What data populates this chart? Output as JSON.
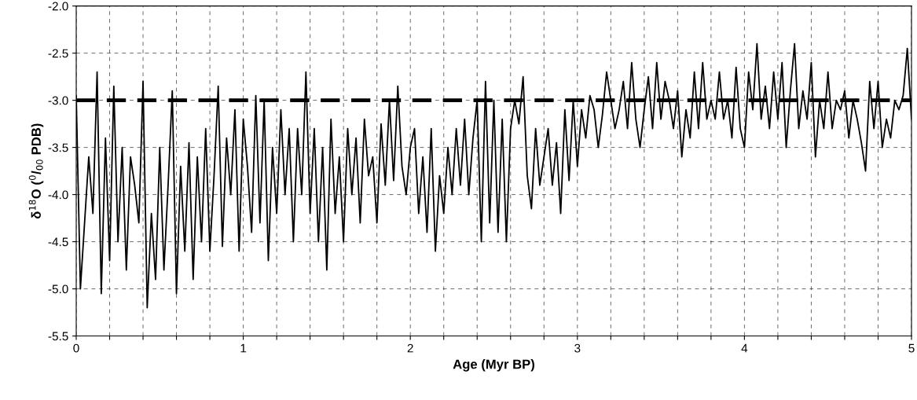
{
  "chart_data": {
    "type": "line",
    "xlabel": "Age (Myr BP)",
    "ylabel": "δ$^{18}$O ($^{0}$/$_{00}$ PDB)",
    "x": [
      0,
      0.025,
      0.05,
      0.075,
      0.1,
      0.125,
      0.15,
      0.175,
      0.2,
      0.225,
      0.25,
      0.275,
      0.3,
      0.325,
      0.35,
      0.375,
      0.4,
      0.425,
      0.45,
      0.475,
      0.5,
      0.525,
      0.55,
      0.575,
      0.6,
      0.625,
      0.65,
      0.675,
      0.7,
      0.725,
      0.75,
      0.775,
      0.8,
      0.825,
      0.85,
      0.875,
      0.9,
      0.925,
      0.95,
      0.975,
      1.0,
      1.025,
      1.05,
      1.075,
      1.1,
      1.125,
      1.15,
      1.175,
      1.2,
      1.225,
      1.25,
      1.275,
      1.3,
      1.325,
      1.35,
      1.375,
      1.4,
      1.425,
      1.45,
      1.475,
      1.5,
      1.525,
      1.55,
      1.575,
      1.6,
      1.625,
      1.65,
      1.675,
      1.7,
      1.725,
      1.75,
      1.775,
      1.8,
      1.825,
      1.85,
      1.875,
      1.9,
      1.925,
      1.95,
      1.975,
      2.0,
      2.025,
      2.05,
      2.075,
      2.1,
      2.125,
      2.15,
      2.175,
      2.2,
      2.225,
      2.25,
      2.275,
      2.3,
      2.325,
      2.35,
      2.375,
      2.4,
      2.425,
      2.45,
      2.475,
      2.5,
      2.525,
      2.55,
      2.575,
      2.6,
      2.625,
      2.65,
      2.675,
      2.7,
      2.725,
      2.75,
      2.775,
      2.8,
      2.825,
      2.85,
      2.875,
      2.9,
      2.925,
      2.95,
      2.975,
      3.0,
      3.025,
      3.05,
      3.075,
      3.1,
      3.125,
      3.15,
      3.175,
      3.2,
      3.225,
      3.25,
      3.275,
      3.3,
      3.325,
      3.35,
      3.375,
      3.4,
      3.425,
      3.45,
      3.475,
      3.5,
      3.525,
      3.55,
      3.575,
      3.6,
      3.625,
      3.65,
      3.675,
      3.7,
      3.725,
      3.75,
      3.775,
      3.8,
      3.825,
      3.85,
      3.875,
      3.9,
      3.925,
      3.95,
      3.975,
      4.0,
      4.025,
      4.05,
      4.075,
      4.1,
      4.125,
      4.15,
      4.175,
      4.2,
      4.225,
      4.25,
      4.275,
      4.3,
      4.325,
      4.35,
      4.375,
      4.4,
      4.425,
      4.45,
      4.475,
      4.5,
      4.525,
      4.55,
      4.575,
      4.6,
      4.625,
      4.65,
      4.675,
      4.7,
      4.725,
      4.75,
      4.775,
      4.8,
      4.825,
      4.85,
      4.875,
      4.9,
      4.925,
      4.95,
      4.975,
      5.0
    ],
    "series": [
      {
        "color": "#000000",
        "values": [
          -2.95,
          -5.0,
          -4.3,
          -3.6,
          -4.2,
          -2.7,
          -5.05,
          -3.4,
          -4.7,
          -2.85,
          -4.5,
          -3.5,
          -4.8,
          -3.6,
          -3.9,
          -4.3,
          -2.8,
          -5.2,
          -4.2,
          -4.9,
          -3.5,
          -4.8,
          -3.9,
          -2.9,
          -5.05,
          -3.7,
          -4.6,
          -3.45,
          -4.9,
          -3.6,
          -4.5,
          -3.3,
          -4.6,
          -3.8,
          -2.85,
          -4.55,
          -3.4,
          -4.0,
          -3.1,
          -4.6,
          -3.2,
          -3.7,
          -4.4,
          -2.95,
          -4.3,
          -3.0,
          -4.7,
          -3.5,
          -4.2,
          -3.1,
          -4.0,
          -3.3,
          -4.5,
          -3.3,
          -4.0,
          -2.7,
          -4.2,
          -3.3,
          -4.5,
          -3.5,
          -4.8,
          -3.2,
          -4.2,
          -3.6,
          -4.5,
          -3.3,
          -4.0,
          -3.4,
          -4.3,
          -3.2,
          -3.8,
          -3.6,
          -4.3,
          -3.25,
          -3.9,
          -3.0,
          -3.85,
          -2.85,
          -3.7,
          -4.0,
          -3.5,
          -3.3,
          -4.2,
          -3.6,
          -4.4,
          -3.3,
          -4.6,
          -3.8,
          -4.2,
          -3.5,
          -4.0,
          -3.3,
          -3.9,
          -3.2,
          -4.0,
          -3.4,
          -3.0,
          -4.5,
          -2.8,
          -4.3,
          -3.0,
          -4.4,
          -3.2,
          -4.5,
          -3.3,
          -3.0,
          -3.25,
          -2.75,
          -3.8,
          -4.15,
          -3.3,
          -3.9,
          -3.6,
          -3.3,
          -3.9,
          -3.45,
          -4.2,
          -3.1,
          -3.85,
          -3.0,
          -3.7,
          -3.1,
          -3.4,
          -2.95,
          -3.1,
          -3.5,
          -3.15,
          -2.7,
          -3.0,
          -3.3,
          -3.1,
          -2.8,
          -3.3,
          -2.6,
          -3.2,
          -3.5,
          -3.1,
          -2.75,
          -3.3,
          -2.6,
          -3.2,
          -2.8,
          -3.0,
          -3.3,
          -2.9,
          -3.6,
          -3.1,
          -3.4,
          -2.7,
          -3.3,
          -2.6,
          -3.2,
          -3.0,
          -3.2,
          -2.7,
          -3.2,
          -3.0,
          -3.4,
          -2.65,
          -3.3,
          -3.5,
          -2.7,
          -3.1,
          -2.4,
          -3.2,
          -2.85,
          -3.3,
          -2.7,
          -3.2,
          -2.6,
          -3.5,
          -2.9,
          -2.4,
          -3.3,
          -2.9,
          -3.2,
          -2.6,
          -3.6,
          -3.0,
          -3.3,
          -2.7,
          -3.3,
          -3.0,
          -3.1,
          -2.9,
          -3.4,
          -3.0,
          -3.2,
          -3.45,
          -3.75,
          -2.8,
          -3.3,
          -2.8,
          -3.5,
          -3.2,
          -3.4,
          -3.0,
          -3.1,
          -2.95,
          -2.45,
          -3.2
        ]
      }
    ],
    "xlim": [
      0,
      5
    ],
    "ylim": [
      -5.5,
      -2.0
    ],
    "xticks": [
      0,
      {
        "value": 0.2,
        "label": null
      },
      {
        "value": 0.4,
        "label": null
      },
      {
        "value": 0.6,
        "label": null
      },
      {
        "value": 0.8,
        "label": null
      },
      1,
      {
        "value": 1.2,
        "label": null
      },
      {
        "value": 1.4,
        "label": null
      },
      {
        "value": 1.6,
        "label": null
      },
      {
        "value": 1.8,
        "label": null
      },
      2,
      {
        "value": 2.2,
        "label": null
      },
      {
        "value": 2.4,
        "label": null
      },
      {
        "value": 2.6,
        "label": null
      },
      {
        "value": 2.8,
        "label": null
      },
      3,
      {
        "value": 3.2,
        "label": null
      },
      {
        "value": 3.4,
        "label": null
      },
      {
        "value": 3.6,
        "label": null
      },
      {
        "value": 3.8,
        "label": null
      },
      4,
      {
        "value": 4.2,
        "label": null
      },
      {
        "value": 4.4,
        "label": null
      },
      {
        "value": 4.6,
        "label": null
      },
      {
        "value": 4.8,
        "label": null
      },
      5
    ],
    "yticks": [
      {
        "value": -5.5,
        "label": "-5.5"
      },
      {
        "value": -5.0,
        "label": "-5.0"
      },
      {
        "value": -4.5,
        "label": "-4.5"
      },
      {
        "value": -4.0,
        "label": "-4.0"
      },
      {
        "value": -3.5,
        "label": "-3.5"
      },
      {
        "value": -3.0,
        "label": "-3.0"
      },
      {
        "value": -2.5,
        "label": "-2.5"
      },
      {
        "value": -2.0,
        "label": "-2.0"
      }
    ],
    "grid": true,
    "marker": "none",
    "line_style": "solid",
    "ref_lines": [
      {
        "axis": "y",
        "value": -3.0,
        "color": "#000000",
        "line_style": "dashed"
      }
    ]
  }
}
